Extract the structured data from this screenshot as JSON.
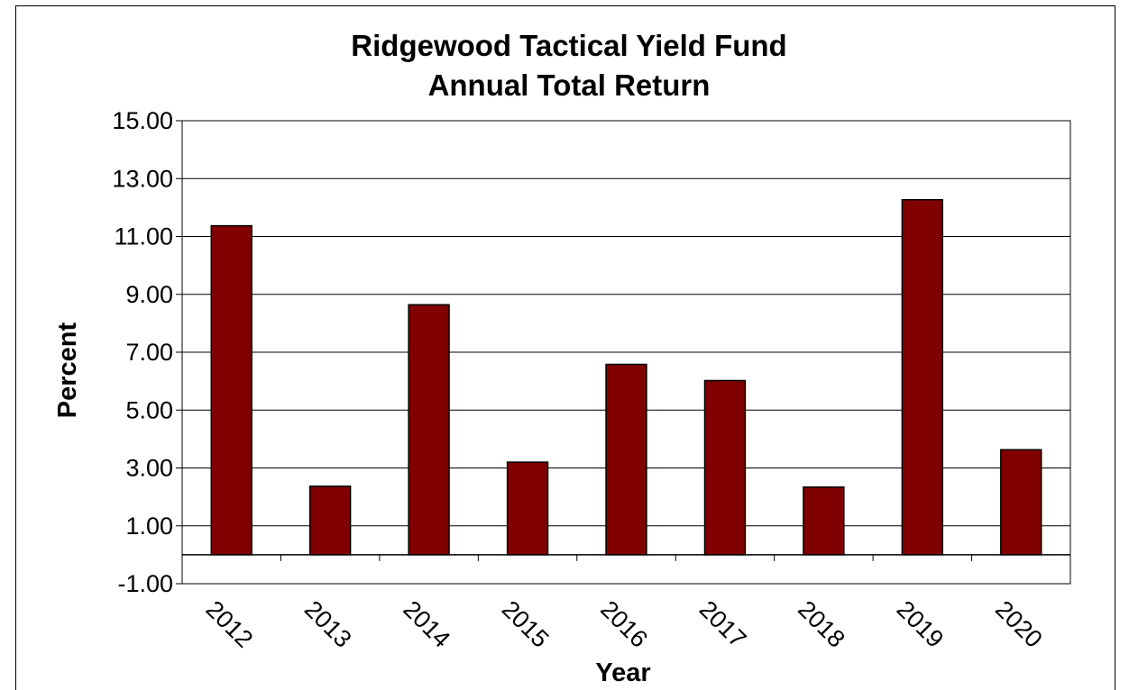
{
  "chart_data": {
    "type": "bar",
    "title": "Ridgewood Tactical Yield Fund",
    "subtitle": "Annual Total Return",
    "xlabel": "Year",
    "ylabel": "Percent",
    "categories": [
      "2012",
      "2013",
      "2014",
      "2015",
      "2016",
      "2017",
      "2018",
      "2019",
      "2020"
    ],
    "values": [
      11.37,
      2.37,
      8.64,
      3.2,
      6.58,
      6.02,
      2.34,
      12.27,
      3.63
    ],
    "ylim": [
      -1.0,
      15.0
    ],
    "yticks": [
      "-1.00",
      "1.00",
      "3.00",
      "5.00",
      "7.00",
      "9.00",
      "11.00",
      "13.00",
      "15.00"
    ],
    "grid": true,
    "legend": "none",
    "bar_color": "#800000"
  }
}
